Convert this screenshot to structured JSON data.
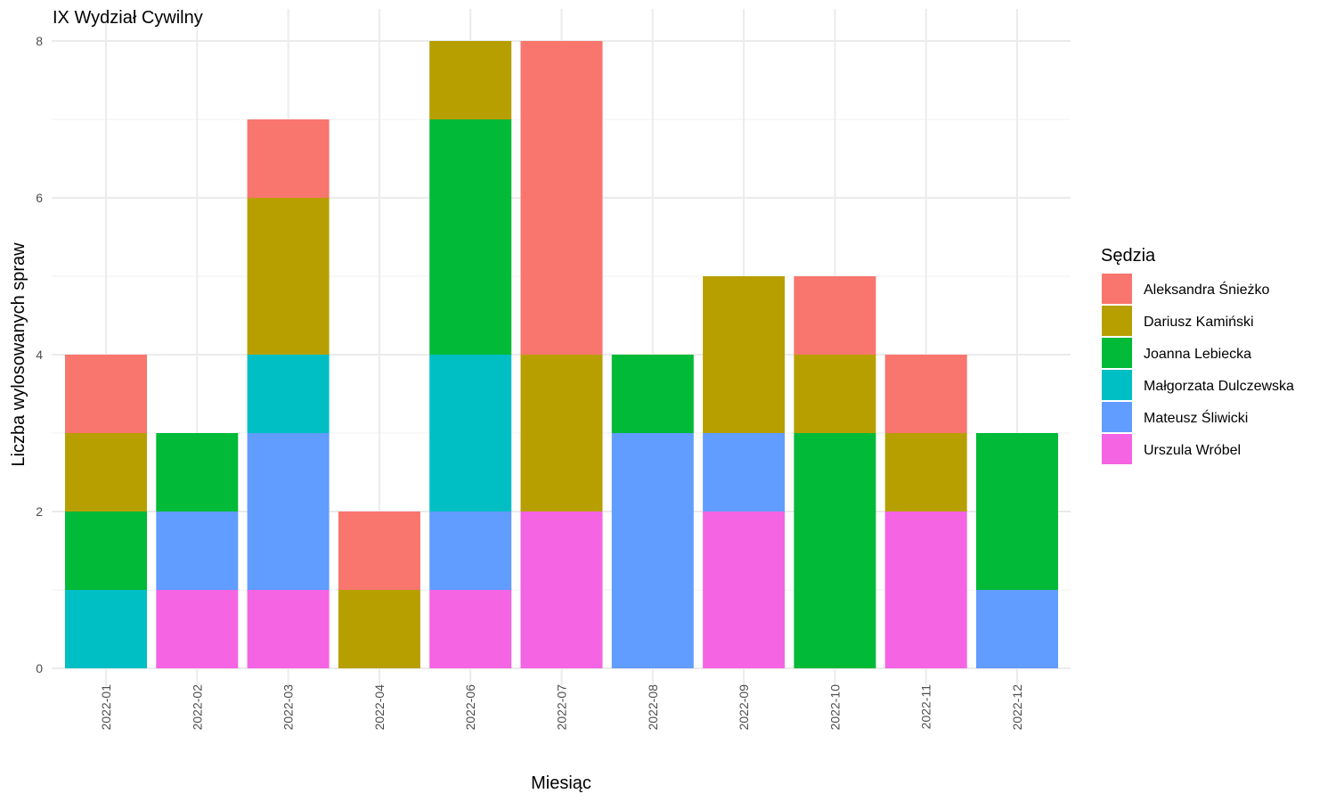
{
  "chart_data": {
    "type": "bar",
    "stacked": true,
    "title": "IX Wydział Cywilny",
    "xlabel": "Miesiąc",
    "ylabel": "Liczba wylosowanych spraw",
    "ylim": [
      0,
      8
    ],
    "yticks": [
      0,
      2,
      4,
      6,
      8
    ],
    "grid": true,
    "legend_title": "Sędzia",
    "legend_position": "right",
    "categories": [
      "2022-01",
      "2022-02",
      "2022-03",
      "2022-04",
      "2022-06",
      "2022-07",
      "2022-08",
      "2022-09",
      "2022-10",
      "2022-11",
      "2022-12"
    ],
    "series": [
      {
        "name": "Aleksandra Śnieżko",
        "color": "#F8766D",
        "values": [
          1,
          0,
          1,
          1,
          0,
          4,
          0,
          0,
          1,
          1,
          0
        ]
      },
      {
        "name": "Dariusz Kamiński",
        "color": "#B79F00",
        "values": [
          1,
          0,
          2,
          1,
          1,
          2,
          0,
          2,
          1,
          1,
          0
        ]
      },
      {
        "name": "Joanna Lebiecka",
        "color": "#00BA38",
        "values": [
          1,
          1,
          0,
          0,
          3,
          0,
          1,
          0,
          3,
          0,
          2
        ]
      },
      {
        "name": "Małgorzata Dulczewska",
        "color": "#00BFC4",
        "values": [
          1,
          0,
          1,
          0,
          2,
          0,
          0,
          0,
          0,
          0,
          0
        ]
      },
      {
        "name": "Mateusz Śliwicki",
        "color": "#619CFF",
        "values": [
          0,
          1,
          2,
          0,
          1,
          0,
          3,
          1,
          0,
          0,
          1
        ]
      },
      {
        "name": "Urszula Wróbel",
        "color": "#F564E3",
        "values": [
          0,
          1,
          1,
          0,
          1,
          2,
          0,
          2,
          0,
          2,
          0
        ]
      }
    ]
  }
}
